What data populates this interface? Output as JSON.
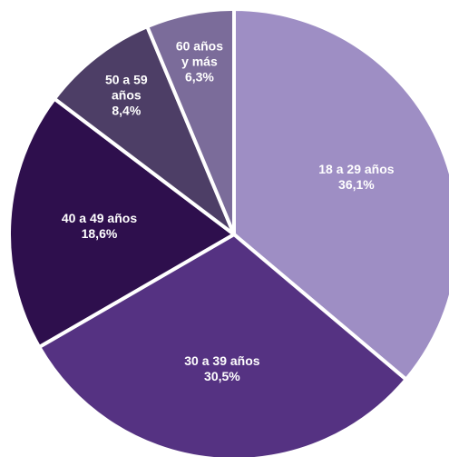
{
  "chart_data": {
    "type": "pie",
    "categories": [
      "18 a 29 años",
      "30 a 39 años",
      "40 a 49 años",
      "50 a 59 años",
      "60 años y más"
    ],
    "values": [
      36.1,
      30.5,
      18.6,
      8.4,
      6.3
    ],
    "value_labels": [
      "36,1%",
      "30,5%",
      "18,6%",
      "8,4%",
      "6,3%"
    ],
    "colors": [
      "#9e8ec4",
      "#553282",
      "#2e0f4d",
      "#4d3e66",
      "#7b6c9a"
    ]
  }
}
